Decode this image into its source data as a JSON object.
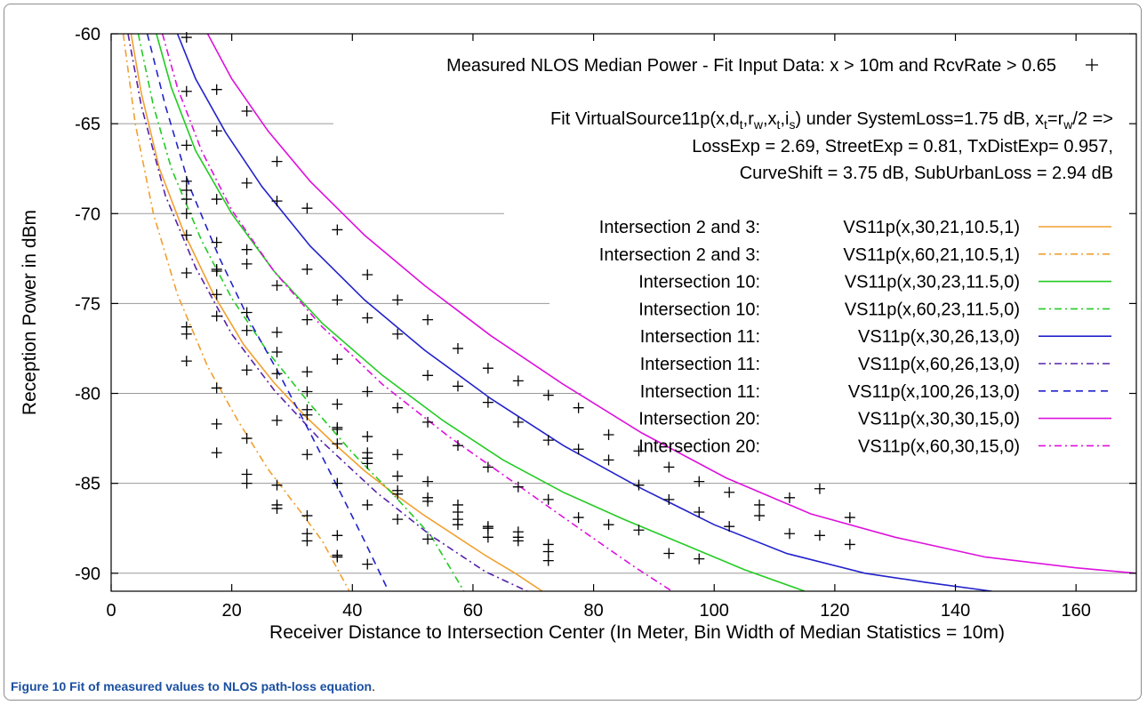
{
  "chart_data": {
    "type": "line",
    "xlabel": "Receiver Distance to Intersection Center (In Meter, Bin Width of Median Statistics = 10m)",
    "ylabel": "Reception Power in dBm",
    "xlim": [
      0,
      170
    ],
    "ylim": [
      -91,
      -60
    ],
    "xticks": [
      0,
      20,
      40,
      60,
      80,
      100,
      120,
      140,
      160
    ],
    "yticks": [
      -60,
      -65,
      -70,
      -75,
      -80,
      -85,
      -90
    ],
    "grid": "partial horizontal lines at y ticks",
    "legend_position": "top-right",
    "scatter_label": "Measured NLOS Median Power - Fit Input Data: x > 10m and RcvRate > 0.65",
    "fit_text": {
      "line1_a": "Fit VirtualSource11p(x,d",
      "line1_sub1": "t",
      "line1_b": ",r",
      "line1_sub2": "w",
      "line1_c": ",x",
      "line1_sub3": "t",
      "line1_d": ",i",
      "line1_sub4": "s",
      "line1_e": ") under SystemLoss=1.75 dB, x",
      "line1_sub5": "t",
      "line1_f": "=r",
      "line1_sub6": "w",
      "line1_g": "/2 =>",
      "line2": "LossExp = 2.69, StreetExp = 0.81, TxDistExp= 0.957,",
      "line3": "CurveShift = 3.75 dB, SubUrbanLoss = 2.94 dB"
    },
    "series": [
      {
        "name_left": "Intersection 2 and 3:",
        "name_right": "VS11p(x,30,21,10.5,1)",
        "color": "#f0a030",
        "dash": "solid",
        "points": [
          [
            3.3,
            -60
          ],
          [
            5,
            -63.3
          ],
          [
            8,
            -67.5
          ],
          [
            12,
            -71.0
          ],
          [
            17,
            -74.5
          ],
          [
            22,
            -77.3
          ],
          [
            27,
            -79.4
          ],
          [
            32,
            -81.2
          ],
          [
            37,
            -82.8
          ],
          [
            42,
            -84.3
          ],
          [
            47,
            -85.6
          ],
          [
            52,
            -86.8
          ],
          [
            57,
            -87.9
          ],
          [
            62,
            -89.0
          ],
          [
            67,
            -90.0
          ],
          [
            71.5,
            -91
          ]
        ]
      },
      {
        "name_left": "Intersection 2 and 3:",
        "name_right": "VS11p(x,60,21,10.5,1)",
        "color": "#f0a030",
        "dash": "8,4,2,4",
        "points": [
          [
            2.0,
            -60
          ],
          [
            4,
            -65
          ],
          [
            7,
            -70
          ],
          [
            11,
            -74.5
          ],
          [
            16,
            -78.5
          ],
          [
            21,
            -81.5
          ],
          [
            26,
            -84.2
          ],
          [
            31,
            -86.4
          ],
          [
            35,
            -88.2
          ],
          [
            39.5,
            -91
          ]
        ]
      },
      {
        "name_left": "Intersection 10:",
        "name_right": "VS11p(x,30,23,11.5,0)",
        "color": "#22cc22",
        "dash": "solid",
        "points": [
          [
            7.5,
            -60
          ],
          [
            10,
            -63
          ],
          [
            14,
            -66.5
          ],
          [
            20,
            -70
          ],
          [
            27,
            -73.2
          ],
          [
            35,
            -76.1
          ],
          [
            45,
            -79.0
          ],
          [
            55,
            -81.5
          ],
          [
            65,
            -83.7
          ],
          [
            75,
            -85.5
          ],
          [
            85,
            -87.0
          ],
          [
            95,
            -88.4
          ],
          [
            105,
            -89.8
          ],
          [
            115,
            -91
          ]
        ]
      },
      {
        "name_left": "Intersection 10:",
        "name_right": "VS11p(x,60,23,11.5,0)",
        "color": "#22cc22",
        "dash": "8,4,2,4",
        "points": [
          [
            4.5,
            -60
          ],
          [
            7,
            -64
          ],
          [
            10,
            -67.5
          ],
          [
            15,
            -71.5
          ],
          [
            20,
            -74.7
          ],
          [
            26,
            -77.7
          ],
          [
            33,
            -80.6
          ],
          [
            40,
            -83.3
          ],
          [
            47,
            -85.7
          ],
          [
            53,
            -87.9
          ],
          [
            58.5,
            -91
          ]
        ]
      },
      {
        "name_left": "Intersection 11:",
        "name_right": "VS11p(x,30,26,13,0)",
        "color": "#2222cc",
        "dash": "solid",
        "points": [
          [
            11,
            -60
          ],
          [
            14,
            -62.5
          ],
          [
            19,
            -65.5
          ],
          [
            25,
            -68.5
          ],
          [
            33,
            -71.8
          ],
          [
            42,
            -74.8
          ],
          [
            52,
            -77.6
          ],
          [
            63,
            -80.3
          ],
          [
            75,
            -82.9
          ],
          [
            88,
            -85.3
          ],
          [
            100,
            -87.3
          ],
          [
            112,
            -88.9
          ],
          [
            125,
            -90.0
          ],
          [
            135,
            -90.5
          ],
          [
            146,
            -91
          ]
        ]
      },
      {
        "name_left": "Intersection 11:",
        "name_right": "VS11p(x,60,26,13,0)",
        "color": "#5522aa",
        "dash": "8,4,2,4",
        "points": [
          [
            2.8,
            -60
          ],
          [
            5,
            -64
          ],
          [
            9,
            -69
          ],
          [
            14,
            -73
          ],
          [
            20,
            -76.7
          ],
          [
            27,
            -79.8
          ],
          [
            35,
            -82.7
          ],
          [
            44,
            -85.5
          ],
          [
            53,
            -87.9
          ],
          [
            62,
            -89.9
          ],
          [
            69,
            -91
          ]
        ]
      },
      {
        "name_left": "Intersection 11:",
        "name_right": "VS11p(x,100,26,13,0)",
        "color": "#2222cc",
        "dash": "8,6",
        "points": [
          [
            6,
            -60
          ],
          [
            9,
            -64
          ],
          [
            13,
            -68.5
          ],
          [
            18,
            -72.5
          ],
          [
            23,
            -76
          ],
          [
            28,
            -79
          ],
          [
            33,
            -82.2
          ],
          [
            38,
            -85.5
          ],
          [
            42,
            -88.2
          ],
          [
            46,
            -91
          ]
        ]
      },
      {
        "name_left": "Intersection 20:",
        "name_right": "VS11p(x,30,30,15,0)",
        "color": "#dd11dd",
        "dash": "solid",
        "points": [
          [
            16,
            -60
          ],
          [
            20,
            -62.5
          ],
          [
            26,
            -65.4
          ],
          [
            33,
            -68.2
          ],
          [
            42,
            -71.2
          ],
          [
            52,
            -74.0
          ],
          [
            63,
            -76.8
          ],
          [
            75,
            -79.5
          ],
          [
            88,
            -82.2
          ],
          [
            102,
            -84.7
          ],
          [
            116,
            -86.7
          ],
          [
            130,
            -88.0
          ],
          [
            145,
            -89.1
          ],
          [
            160,
            -89.7
          ],
          [
            170,
            -90
          ]
        ]
      },
      {
        "name_left": "Intersection 20:",
        "name_right": "VS11p(x,60,30,15,0)",
        "color": "#dd11dd",
        "dash": "8,4,2,4",
        "points": [
          [
            8.5,
            -60
          ],
          [
            11,
            -63
          ],
          [
            15,
            -66.5
          ],
          [
            20,
            -69.8
          ],
          [
            27,
            -73.2
          ],
          [
            35,
            -76.3
          ],
          [
            45,
            -79.5
          ],
          [
            56,
            -82.4
          ],
          [
            67,
            -85.0
          ],
          [
            78,
            -87.6
          ],
          [
            87,
            -89.7
          ],
          [
            93,
            -91
          ]
        ]
      }
    ],
    "scatter": [
      [
        12.5,
        -60.2
      ],
      [
        12.5,
        -63.2
      ],
      [
        12.5,
        -66.2
      ],
      [
        12.5,
        -68.2
      ],
      [
        12.5,
        -68.7
      ],
      [
        12.5,
        -69.2
      ],
      [
        12.5,
        -70.0
      ],
      [
        12.5,
        -71.2
      ],
      [
        12.5,
        -73.3
      ],
      [
        12.5,
        -76.3
      ],
      [
        12.5,
        -76.7
      ],
      [
        12.5,
        -78.2
      ],
      [
        17.5,
        -63.1
      ],
      [
        17.5,
        -65.4
      ],
      [
        17.5,
        -69.2
      ],
      [
        17.5,
        -71.6
      ],
      [
        17.5,
        -73.1
      ],
      [
        17.5,
        -73.2
      ],
      [
        17.5,
        -74.5
      ],
      [
        17.5,
        -75.7
      ],
      [
        17.5,
        -79.7
      ],
      [
        17.5,
        -81.7
      ],
      [
        17.5,
        -83.3
      ],
      [
        22.5,
        -64.3
      ],
      [
        22.5,
        -68.3
      ],
      [
        22.5,
        -72.0
      ],
      [
        22.5,
        -72.8
      ],
      [
        22.5,
        -75.5
      ],
      [
        22.5,
        -76.5
      ],
      [
        22.5,
        -78.7
      ],
      [
        22.5,
        -82.5
      ],
      [
        22.5,
        -84.5
      ],
      [
        22.5,
        -85.0
      ],
      [
        27.5,
        -67.1
      ],
      [
        27.5,
        -69.3
      ],
      [
        27.5,
        -74.0
      ],
      [
        27.5,
        -76.6
      ],
      [
        27.5,
        -77.7
      ],
      [
        27.5,
        -78.9
      ],
      [
        27.5,
        -81.5
      ],
      [
        27.5,
        -85.1
      ],
      [
        27.5,
        -86.2
      ],
      [
        27.5,
        -86.4
      ],
      [
        32.5,
        -69.7
      ],
      [
        32.5,
        -73.1
      ],
      [
        32.5,
        -75.9
      ],
      [
        32.5,
        -78.8
      ],
      [
        32.5,
        -79.9
      ],
      [
        32.5,
        -80.9
      ],
      [
        32.5,
        -81.2
      ],
      [
        32.5,
        -83.4
      ],
      [
        32.5,
        -86.8
      ],
      [
        32.5,
        -87.8
      ],
      [
        32.5,
        -88.2
      ],
      [
        37.5,
        -70.9
      ],
      [
        37.5,
        -74.8
      ],
      [
        37.5,
        -78.1
      ],
      [
        37.5,
        -80.6
      ],
      [
        37.5,
        -81.9
      ],
      [
        37.5,
        -82.0
      ],
      [
        37.5,
        -82.8
      ],
      [
        37.5,
        -85.0
      ],
      [
        37.5,
        -87.9
      ],
      [
        37.5,
        -89.0
      ],
      [
        37.5,
        -89.1
      ],
      [
        42.5,
        -73.4
      ],
      [
        42.5,
        -75.8
      ],
      [
        42.5,
        -79.9
      ],
      [
        42.5,
        -82.4
      ],
      [
        42.5,
        -83.3
      ],
      [
        42.5,
        -83.6
      ],
      [
        42.5,
        -83.9
      ],
      [
        42.5,
        -86.2
      ],
      [
        42.5,
        -89.5
      ],
      [
        47.5,
        -74.8
      ],
      [
        47.5,
        -76.7
      ],
      [
        47.5,
        -80.8
      ],
      [
        47.5,
        -83.4
      ],
      [
        47.5,
        -84.6
      ],
      [
        47.5,
        -85.4
      ],
      [
        47.5,
        -85.6
      ],
      [
        47.5,
        -87.0
      ],
      [
        52.5,
        -75.9
      ],
      [
        52.5,
        -79.0
      ],
      [
        52.5,
        -81.6
      ],
      [
        52.5,
        -84.9
      ],
      [
        52.5,
        -85.8
      ],
      [
        52.5,
        -86.0
      ],
      [
        52.5,
        -88.1
      ],
      [
        57.5,
        -77.5
      ],
      [
        57.5,
        -79.6
      ],
      [
        57.5,
        -82.9
      ],
      [
        57.5,
        -86.2
      ],
      [
        57.5,
        -86.6
      ],
      [
        57.5,
        -87.0
      ],
      [
        57.5,
        -87.3
      ],
      [
        62.5,
        -78.6
      ],
      [
        62.5,
        -80.5
      ],
      [
        62.5,
        -84.1
      ],
      [
        62.5,
        -87.4
      ],
      [
        62.5,
        -87.5
      ],
      [
        62.5,
        -88.0
      ],
      [
        67.5,
        -79.3
      ],
      [
        67.5,
        -81.6
      ],
      [
        67.5,
        -85.2
      ],
      [
        67.5,
        -87.7
      ],
      [
        67.5,
        -88.0
      ],
      [
        67.5,
        -88.2
      ],
      [
        72.5,
        -80.1
      ],
      [
        72.5,
        -82.6
      ],
      [
        72.5,
        -85.9
      ],
      [
        72.5,
        -88.4
      ],
      [
        72.5,
        -88.8
      ],
      [
        72.5,
        -89.3
      ],
      [
        77.5,
        -80.8
      ],
      [
        77.5,
        -83.1
      ],
      [
        77.5,
        -86.9
      ],
      [
        82.5,
        -82.3
      ],
      [
        82.5,
        -83.7
      ],
      [
        82.5,
        -87.3
      ],
      [
        87.5,
        -83.2
      ],
      [
        87.5,
        -85.1
      ],
      [
        87.5,
        -87.6
      ],
      [
        92.5,
        -84.1
      ],
      [
        92.5,
        -85.9
      ],
      [
        92.5,
        -88.9
      ],
      [
        97.5,
        -84.9
      ],
      [
        97.5,
        -86.6
      ],
      [
        97.5,
        -89.2
      ],
      [
        102.5,
        -85.5
      ],
      [
        102.5,
        -87.4
      ],
      [
        107.5,
        -86.2
      ],
      [
        107.5,
        -86.8
      ],
      [
        112.5,
        -85.8
      ],
      [
        112.5,
        -87.8
      ],
      [
        117.5,
        -85.3
      ],
      [
        117.5,
        -87.9
      ],
      [
        122.5,
        -86.9
      ],
      [
        122.5,
        -88.4
      ]
    ]
  },
  "caption": {
    "label": "Figure 10",
    "text": "Fit of measured values to NLOS path-loss equation",
    "end": "."
  }
}
